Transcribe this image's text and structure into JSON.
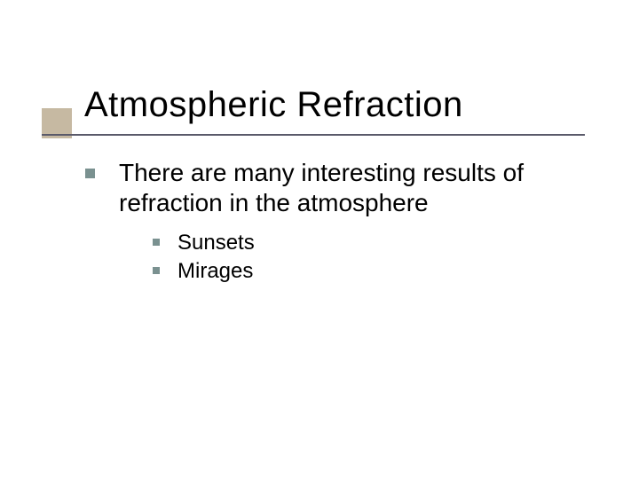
{
  "slide": {
    "title": "Atmospheric Refraction",
    "main_point": "There are many interesting results of refraction in the atmosphere",
    "sub_points": [
      "Sunsets",
      "Mirages"
    ]
  },
  "style": {
    "background_color": "#ffffff",
    "title_fontsize": 40,
    "title_color": "#000000",
    "body_fontsize": 28,
    "sub_fontsize": 24,
    "text_color": "#000000",
    "accent_box_color": "#c6b9a2",
    "rule_color": "#5a5a6a",
    "bullet_color": "#7a9190"
  }
}
